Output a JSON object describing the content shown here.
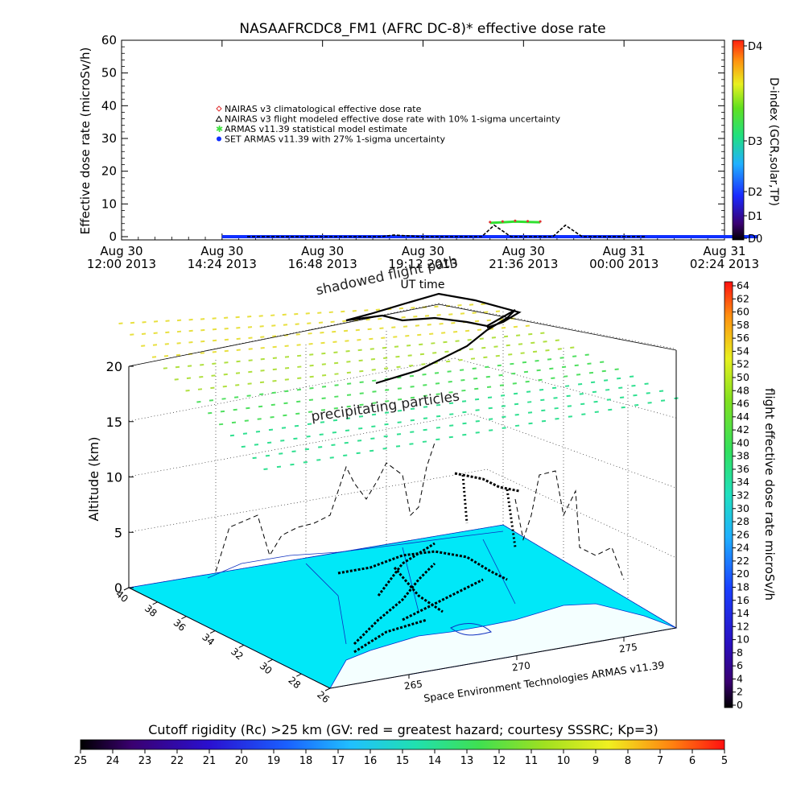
{
  "title": "NASAAFRCDC8_FM1 (AFRC DC-8)* effective dose rate",
  "footer_credit": "Space Environment Technologies ARMAS v11.39",
  "chart_data": [
    {
      "type": "line",
      "title": "NASAAFRCDC8_FM1 (AFRC DC-8)* effective dose rate",
      "xlabel": "UT time",
      "ylabel": "Effective dose rate (microSv/h)",
      "ylim": [
        0,
        60
      ],
      "yticks": [
        "0",
        "10",
        "20",
        "30",
        "40",
        "50",
        "60"
      ],
      "xticks": [
        {
          "line1": "Aug 30",
          "line2": "12:00 2013"
        },
        {
          "line1": "Aug 30",
          "line2": "14:24 2013"
        },
        {
          "line1": "Aug 30",
          "line2": "16:48 2013"
        },
        {
          "line1": "Aug 30",
          "line2": "19:12 2013"
        },
        {
          "line1": "Aug 30",
          "line2": "21:36 2013"
        },
        {
          "line1": "Aug 31",
          "line2": "00:00 2013"
        },
        {
          "line1": "Aug 31",
          "line2": "02:24 2013"
        }
      ],
      "xlim_hours": [
        0,
        14.4
      ],
      "legend": [
        {
          "label": "NAIRAS v3 climatological effective dose rate",
          "color": "#e03030",
          "marker": "diamond"
        },
        {
          "label": "NAIRAS v3 flight modeled effective dose rate with 10% 1-sigma uncertainty",
          "color": "#000000",
          "marker": "triangle"
        },
        {
          "label": "ARMAS v11.39 statistical model estimate",
          "color": "#40e040",
          "marker": "asterisk"
        },
        {
          "label": "SET ARMAS v11.39 with 27% 1-sigma uncertainty",
          "color": "#1030ff",
          "marker": "dot"
        }
      ],
      "series": [
        {
          "name": "NAIRAS v3 flight modeled effective dose rate with 10% 1-sigma uncertainty",
          "x": [
            3.0,
            6.2,
            6.5,
            7.2,
            7.8,
            8.6,
            8.9,
            9.3,
            10.3,
            10.6,
            11.0,
            12.5
          ],
          "y": [
            0,
            0,
            0.5,
            0,
            0,
            0,
            3.5,
            0,
            0,
            3.5,
            0,
            0
          ]
        },
        {
          "name": "ARMAS v11.39 statistical model estimate",
          "x": [
            8.8,
            9.1,
            9.4,
            9.7,
            10.0
          ],
          "y": [
            4.2,
            4.4,
            4.6,
            4.5,
            4.4
          ]
        },
        {
          "name": "SET ARMAS v11.39 with 27% 1-sigma uncertainty",
          "x": [
            2.4,
            6.0,
            9.0,
            12.0,
            15.2
          ],
          "y": [
            0,
            0,
            0,
            0,
            0
          ]
        }
      ],
      "d_index": {
        "label": "D-index (GCR,solar,TP)",
        "ticks": [
          "D0",
          "D1",
          "D2",
          "D3",
          "D4"
        ]
      }
    },
    {
      "type": "scatter",
      "title": "",
      "zlabel": "Altitude (km)",
      "zticks": [
        "0",
        "5",
        "10",
        "15",
        "20"
      ],
      "lat_ticks": [
        "40",
        "38",
        "36",
        "34",
        "32",
        "30",
        "28",
        "26"
      ],
      "lon_ticks": [
        "265",
        "270",
        "275"
      ],
      "annotations": [
        "shadowed flight path",
        "precipitating particles"
      ],
      "right_colorbar": {
        "label": "flight effective dose rate microSv/h",
        "ticks": [
          "0",
          "2",
          "4",
          "6",
          "8",
          "10",
          "12",
          "14",
          "16",
          "18",
          "20",
          "22",
          "24",
          "26",
          "28",
          "30",
          "32",
          "34",
          "36",
          "38",
          "40",
          "42",
          "44",
          "46",
          "48",
          "50",
          "52",
          "54",
          "56",
          "58",
          "60",
          "62",
          "64"
        ]
      },
      "bottom_colorbar": {
        "label": "Cutoff rigidity (Rc) >25 km (GV: red = greatest hazard; courtesy SSSRC; Kp=3)",
        "ticks": [
          "25",
          "24",
          "23",
          "22",
          "21",
          "20",
          "19",
          "18",
          "17",
          "16",
          "15",
          "14",
          "13",
          "12",
          "11",
          "10",
          "9",
          "8",
          "7",
          "6",
          "5"
        ]
      }
    }
  ]
}
